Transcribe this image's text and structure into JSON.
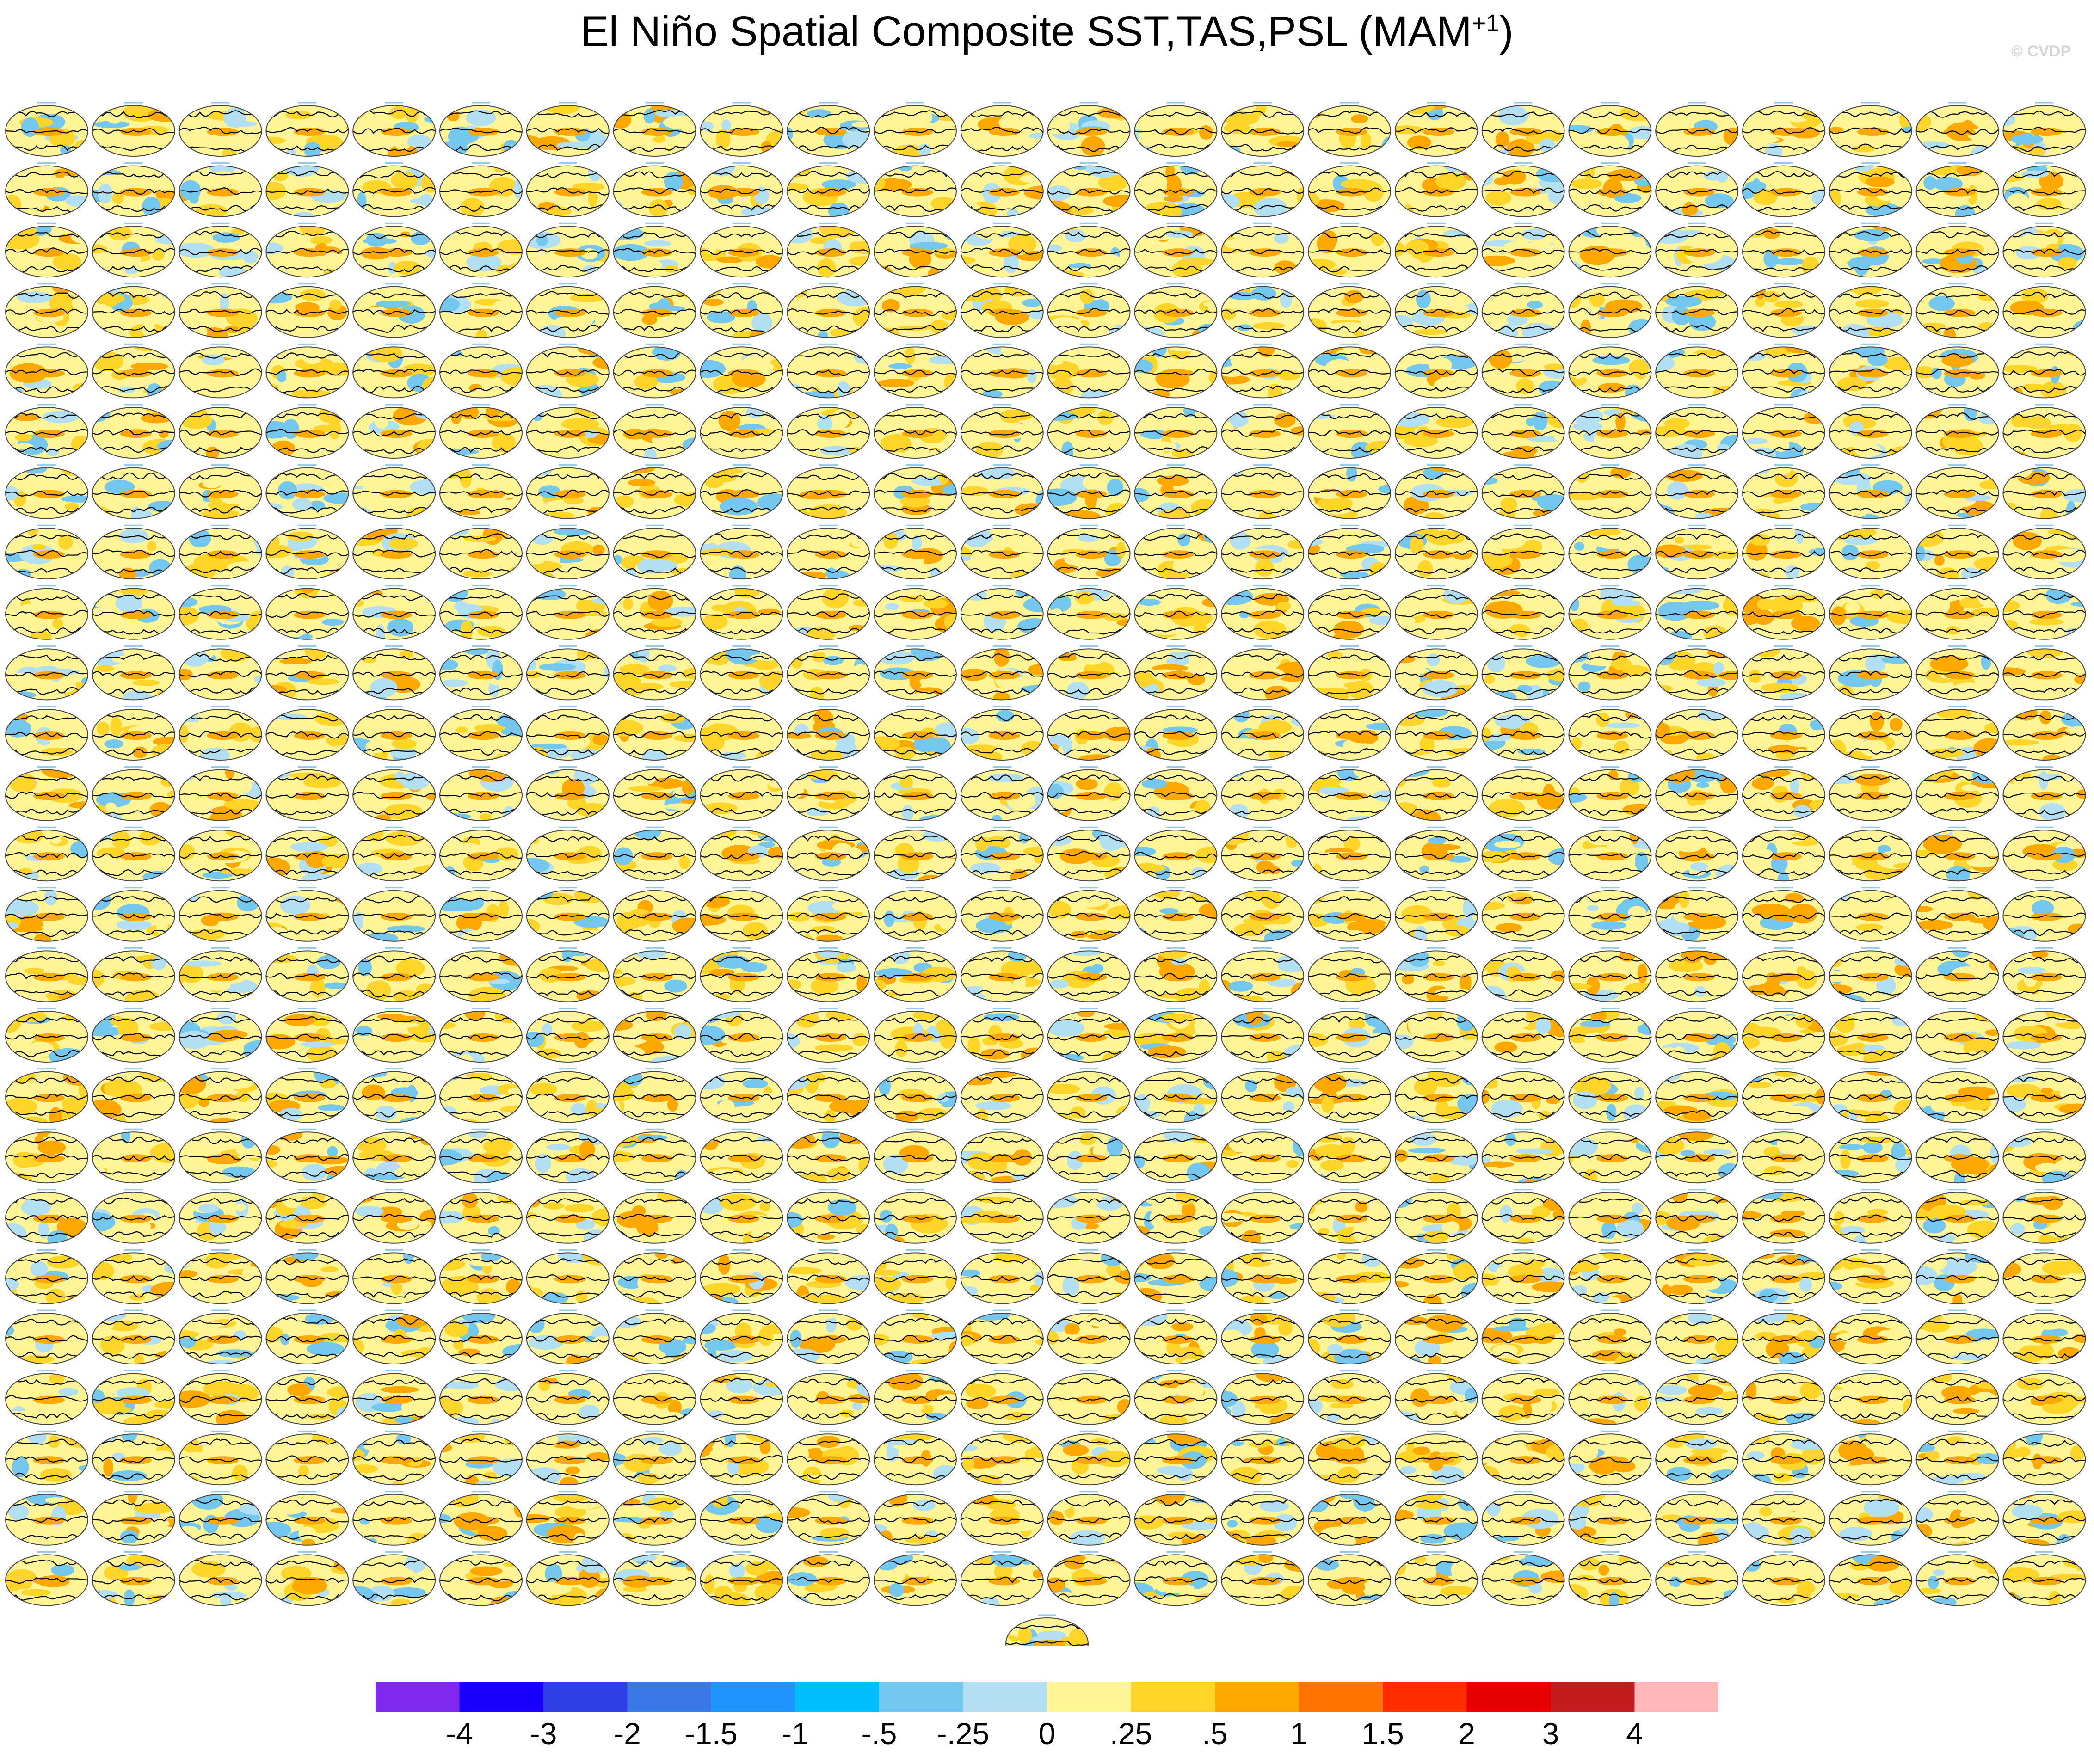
{
  "title": {
    "main": "El Niño Spatial Composite SST,TAS,PSL (MAM",
    "superscript": "+1",
    "close": ")"
  },
  "watermark": "© CVDP",
  "panel_grid": {
    "rows": 25,
    "columns": 24,
    "extra_panels_last_row": 1,
    "panel_type": "global map with shaded anomalies and contours"
  },
  "colorbar": {
    "colors": [
      "#8028f0",
      "#1800fa",
      "#2f3fe6",
      "#3a78e8",
      "#1e94ff",
      "#00bfff",
      "#74c7ee",
      "#b3dff2",
      "#fff597",
      "#ffd52a",
      "#ffa900",
      "#ff7400",
      "#ff2c00",
      "#e60000",
      "#c41c1c",
      "#ffb8b8"
    ],
    "tick_labels": [
      "-4",
      "-3",
      "-2",
      "-1.5",
      "-1",
      "-.5",
      "-.25",
      "0",
      ".25",
      ".5",
      "1",
      "1.5",
      "2",
      "3",
      "4"
    ]
  },
  "palette": {
    "ocean_light_blue": "#b3dff2",
    "blue": "#74c7ee",
    "pale_yellow": "#fff597",
    "yellow": "#ffd52a",
    "orange": "#ffa900",
    "contour": "#000000"
  }
}
